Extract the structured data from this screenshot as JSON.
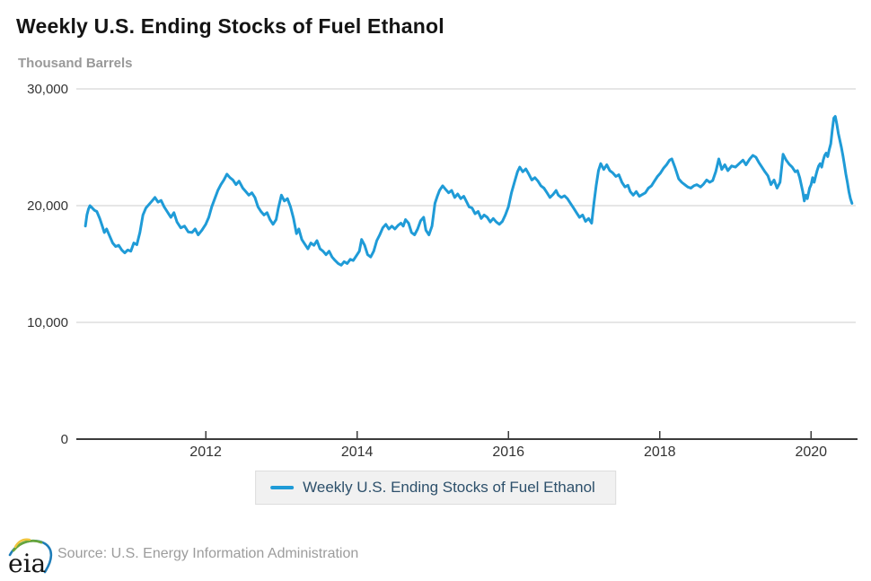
{
  "header": {
    "title": "Weekly U.S. Ending Stocks of Fuel Ethanol",
    "units_label": "Thousand Barrels"
  },
  "legend": {
    "label": "Weekly U.S. Ending Stocks of Fuel Ethanol"
  },
  "footer": {
    "logo_text": "eia",
    "source": "Source: U.S. Energy Information Administration"
  },
  "colors": {
    "line": "#1f9bd7",
    "grid": "#cccccc",
    "axis": "#3b3b3b",
    "tick_label": "#333333",
    "title": "#141414",
    "units": "#999999",
    "legend_text": "#2d506b",
    "legend_bg": "#f1f1f1",
    "legend_border": "#dddddd",
    "source_text": "#9c9c9c",
    "logo_yellow": "#efc53d",
    "logo_green": "#67a53c",
    "logo_blue": "#1e7db8"
  },
  "chart_data": {
    "type": "line",
    "title": "Weekly U.S. Ending Stocks of Fuel Ethanol",
    "xlabel": "",
    "ylabel": "Thousand Barrels",
    "grid": true,
    "legend_position": "bottom",
    "xlim": [
      2010.29,
      2020.59
    ],
    "ylim": [
      0,
      30000
    ],
    "x_ticks": [
      {
        "value": 2012,
        "label": "2012"
      },
      {
        "value": 2014,
        "label": "2014"
      },
      {
        "value": 2016,
        "label": "2016"
      },
      {
        "value": 2018,
        "label": "2018"
      },
      {
        "value": 2020,
        "label": "2020"
      }
    ],
    "y_ticks": [
      {
        "value": 0,
        "label": "0"
      },
      {
        "value": 10000,
        "label": "10,000"
      },
      {
        "value": 20000,
        "label": "20,000"
      },
      {
        "value": 30000,
        "label": "30,000"
      }
    ],
    "series": [
      {
        "name": "Weekly U.S. Ending Stocks of Fuel Ethanol",
        "color": "#1f9bd7",
        "points": [
          [
            2010.41,
            18250
          ],
          [
            2010.43,
            19200
          ],
          [
            2010.45,
            19700
          ],
          [
            2010.47,
            20000
          ],
          [
            2010.5,
            19800
          ],
          [
            2010.53,
            19600
          ],
          [
            2010.56,
            19500
          ],
          [
            2010.6,
            18900
          ],
          [
            2010.63,
            18300
          ],
          [
            2010.66,
            17700
          ],
          [
            2010.69,
            18000
          ],
          [
            2010.73,
            17400
          ],
          [
            2010.77,
            16800
          ],
          [
            2010.81,
            16500
          ],
          [
            2010.85,
            16600
          ],
          [
            2010.89,
            16200
          ],
          [
            2010.93,
            15950
          ],
          [
            2010.97,
            16200
          ],
          [
            2011.01,
            16100
          ],
          [
            2011.05,
            16800
          ],
          [
            2011.09,
            16650
          ],
          [
            2011.13,
            17700
          ],
          [
            2011.17,
            19200
          ],
          [
            2011.21,
            19800
          ],
          [
            2011.25,
            20100
          ],
          [
            2011.29,
            20400
          ],
          [
            2011.33,
            20700
          ],
          [
            2011.37,
            20300
          ],
          [
            2011.41,
            20450
          ],
          [
            2011.45,
            19900
          ],
          [
            2011.49,
            19500
          ],
          [
            2011.54,
            19000
          ],
          [
            2011.58,
            19400
          ],
          [
            2011.62,
            18600
          ],
          [
            2011.67,
            18100
          ],
          [
            2011.72,
            18250
          ],
          [
            2011.77,
            17750
          ],
          [
            2011.82,
            17700
          ],
          [
            2011.86,
            18000
          ],
          [
            2011.9,
            17500
          ],
          [
            2011.95,
            17900
          ],
          [
            2012.0,
            18400
          ],
          [
            2012.04,
            19000
          ],
          [
            2012.08,
            19900
          ],
          [
            2012.12,
            20600
          ],
          [
            2012.16,
            21300
          ],
          [
            2012.2,
            21800
          ],
          [
            2012.24,
            22200
          ],
          [
            2012.28,
            22700
          ],
          [
            2012.32,
            22400
          ],
          [
            2012.36,
            22200
          ],
          [
            2012.4,
            21800
          ],
          [
            2012.44,
            22100
          ],
          [
            2012.49,
            21500
          ],
          [
            2012.53,
            21200
          ],
          [
            2012.57,
            20900
          ],
          [
            2012.61,
            21100
          ],
          [
            2012.65,
            20700
          ],
          [
            2012.69,
            19900
          ],
          [
            2012.73,
            19500
          ],
          [
            2012.77,
            19200
          ],
          [
            2012.81,
            19400
          ],
          [
            2012.85,
            18800
          ],
          [
            2012.89,
            18400
          ],
          [
            2012.93,
            18800
          ],
          [
            2012.96,
            19800
          ],
          [
            2013.0,
            20900
          ],
          [
            2013.04,
            20400
          ],
          [
            2013.08,
            20600
          ],
          [
            2013.12,
            19900
          ],
          [
            2013.16,
            18900
          ],
          [
            2013.2,
            17600
          ],
          [
            2013.23,
            18000
          ],
          [
            2013.27,
            17100
          ],
          [
            2013.31,
            16700
          ],
          [
            2013.35,
            16300
          ],
          [
            2013.39,
            16800
          ],
          [
            2013.43,
            16600
          ],
          [
            2013.47,
            17000
          ],
          [
            2013.51,
            16300
          ],
          [
            2013.55,
            16100
          ],
          [
            2013.59,
            15800
          ],
          [
            2013.63,
            16100
          ],
          [
            2013.67,
            15600
          ],
          [
            2013.71,
            15300
          ],
          [
            2013.75,
            15050
          ],
          [
            2013.79,
            14900
          ],
          [
            2013.83,
            15200
          ],
          [
            2013.87,
            15050
          ],
          [
            2013.91,
            15400
          ],
          [
            2013.95,
            15300
          ],
          [
            2013.99,
            15700
          ],
          [
            2014.03,
            16100
          ],
          [
            2014.06,
            17100
          ],
          [
            2014.1,
            16600
          ],
          [
            2014.14,
            15800
          ],
          [
            2014.18,
            15600
          ],
          [
            2014.22,
            16100
          ],
          [
            2014.26,
            17000
          ],
          [
            2014.3,
            17500
          ],
          [
            2014.34,
            18100
          ],
          [
            2014.38,
            18400
          ],
          [
            2014.42,
            18000
          ],
          [
            2014.46,
            18250
          ],
          [
            2014.5,
            18000
          ],
          [
            2014.54,
            18300
          ],
          [
            2014.58,
            18500
          ],
          [
            2014.61,
            18250
          ],
          [
            2014.64,
            18800
          ],
          [
            2014.68,
            18500
          ],
          [
            2014.72,
            17700
          ],
          [
            2014.76,
            17500
          ],
          [
            2014.8,
            18000
          ],
          [
            2014.84,
            18700
          ],
          [
            2014.88,
            19000
          ],
          [
            2014.91,
            17900
          ],
          [
            2014.95,
            17500
          ],
          [
            2014.99,
            18250
          ],
          [
            2015.03,
            20200
          ],
          [
            2015.06,
            20800
          ],
          [
            2015.09,
            21300
          ],
          [
            2015.13,
            21700
          ],
          [
            2015.17,
            21400
          ],
          [
            2015.21,
            21100
          ],
          [
            2015.25,
            21300
          ],
          [
            2015.29,
            20700
          ],
          [
            2015.33,
            21000
          ],
          [
            2015.37,
            20600
          ],
          [
            2015.41,
            20800
          ],
          [
            2015.45,
            20300
          ],
          [
            2015.48,
            19900
          ],
          [
            2015.52,
            19800
          ],
          [
            2015.56,
            19300
          ],
          [
            2015.6,
            19500
          ],
          [
            2015.64,
            18900
          ],
          [
            2015.68,
            19200
          ],
          [
            2015.72,
            19000
          ],
          [
            2015.76,
            18600
          ],
          [
            2015.8,
            18900
          ],
          [
            2015.84,
            18600
          ],
          [
            2015.88,
            18400
          ],
          [
            2015.92,
            18650
          ],
          [
            2015.96,
            19200
          ],
          [
            2016.0,
            19900
          ],
          [
            2016.04,
            21100
          ],
          [
            2016.08,
            22000
          ],
          [
            2016.12,
            22900
          ],
          [
            2016.15,
            23300
          ],
          [
            2016.19,
            22900
          ],
          [
            2016.23,
            23150
          ],
          [
            2016.27,
            22700
          ],
          [
            2016.31,
            22200
          ],
          [
            2016.35,
            22400
          ],
          [
            2016.39,
            22100
          ],
          [
            2016.43,
            21700
          ],
          [
            2016.47,
            21500
          ],
          [
            2016.51,
            21100
          ],
          [
            2016.55,
            20700
          ],
          [
            2016.59,
            20950
          ],
          [
            2016.63,
            21300
          ],
          [
            2016.66,
            20900
          ],
          [
            2016.7,
            20700
          ],
          [
            2016.74,
            20850
          ],
          [
            2016.78,
            20600
          ],
          [
            2016.82,
            20200
          ],
          [
            2016.86,
            19800
          ],
          [
            2016.9,
            19400
          ],
          [
            2016.94,
            19000
          ],
          [
            2016.98,
            19200
          ],
          [
            2017.02,
            18650
          ],
          [
            2017.06,
            18900
          ],
          [
            2017.1,
            18500
          ],
          [
            2017.13,
            20200
          ],
          [
            2017.16,
            21700
          ],
          [
            2017.19,
            23000
          ],
          [
            2017.22,
            23600
          ],
          [
            2017.26,
            23100
          ],
          [
            2017.3,
            23500
          ],
          [
            2017.34,
            23000
          ],
          [
            2017.38,
            22800
          ],
          [
            2017.42,
            22500
          ],
          [
            2017.46,
            22650
          ],
          [
            2017.5,
            22000
          ],
          [
            2017.54,
            21600
          ],
          [
            2017.58,
            21750
          ],
          [
            2017.61,
            21200
          ],
          [
            2017.65,
            20900
          ],
          [
            2017.69,
            21200
          ],
          [
            2017.73,
            20800
          ],
          [
            2017.77,
            20950
          ],
          [
            2017.81,
            21100
          ],
          [
            2017.85,
            21500
          ],
          [
            2017.89,
            21700
          ],
          [
            2017.93,
            22100
          ],
          [
            2017.97,
            22500
          ],
          [
            2018.01,
            22800
          ],
          [
            2018.05,
            23200
          ],
          [
            2018.09,
            23500
          ],
          [
            2018.13,
            23900
          ],
          [
            2018.16,
            24000
          ],
          [
            2018.2,
            23300
          ],
          [
            2018.25,
            22300
          ],
          [
            2018.29,
            22000
          ],
          [
            2018.33,
            21800
          ],
          [
            2018.37,
            21600
          ],
          [
            2018.41,
            21500
          ],
          [
            2018.45,
            21700
          ],
          [
            2018.49,
            21800
          ],
          [
            2018.54,
            21600
          ],
          [
            2018.58,
            21850
          ],
          [
            2018.62,
            22200
          ],
          [
            2018.66,
            22000
          ],
          [
            2018.7,
            22150
          ],
          [
            2018.74,
            22900
          ],
          [
            2018.78,
            24000
          ],
          [
            2018.82,
            23100
          ],
          [
            2018.86,
            23500
          ],
          [
            2018.9,
            23000
          ],
          [
            2018.95,
            23400
          ],
          [
            2019.0,
            23300
          ],
          [
            2019.05,
            23600
          ],
          [
            2019.1,
            23900
          ],
          [
            2019.14,
            23500
          ],
          [
            2019.19,
            24000
          ],
          [
            2019.23,
            24300
          ],
          [
            2019.27,
            24150
          ],
          [
            2019.31,
            23700
          ],
          [
            2019.35,
            23300
          ],
          [
            2019.39,
            22900
          ],
          [
            2019.43,
            22550
          ],
          [
            2019.47,
            21800
          ],
          [
            2019.51,
            22200
          ],
          [
            2019.55,
            21500
          ],
          [
            2019.59,
            22000
          ],
          [
            2019.63,
            24400
          ],
          [
            2019.67,
            23900
          ],
          [
            2019.71,
            23550
          ],
          [
            2019.75,
            23300
          ],
          [
            2019.79,
            22900
          ],
          [
            2019.82,
            23000
          ],
          [
            2019.85,
            22400
          ],
          [
            2019.87,
            21800
          ],
          [
            2019.89,
            21200
          ],
          [
            2019.91,
            20400
          ],
          [
            2019.93,
            20900
          ],
          [
            2019.95,
            20600
          ],
          [
            2019.98,
            21500
          ],
          [
            2020.0,
            21800
          ],
          [
            2020.02,
            22400
          ],
          [
            2020.04,
            22000
          ],
          [
            2020.06,
            22500
          ],
          [
            2020.08,
            23000
          ],
          [
            2020.1,
            23400
          ],
          [
            2020.12,
            23600
          ],
          [
            2020.14,
            23300
          ],
          [
            2020.16,
            23900
          ],
          [
            2020.18,
            24300
          ],
          [
            2020.2,
            24500
          ],
          [
            2020.22,
            24200
          ],
          [
            2020.24,
            24800
          ],
          [
            2020.26,
            25300
          ],
          [
            2020.28,
            26500
          ],
          [
            2020.3,
            27500
          ],
          [
            2020.32,
            27650
          ],
          [
            2020.34,
            27000
          ],
          [
            2020.36,
            26200
          ],
          [
            2020.38,
            25600
          ],
          [
            2020.4,
            25000
          ],
          [
            2020.42,
            24300
          ],
          [
            2020.44,
            23500
          ],
          [
            2020.46,
            22700
          ],
          [
            2020.48,
            22000
          ],
          [
            2020.5,
            21200
          ],
          [
            2020.52,
            20600
          ],
          [
            2020.54,
            20200
          ]
        ]
      }
    ]
  }
}
